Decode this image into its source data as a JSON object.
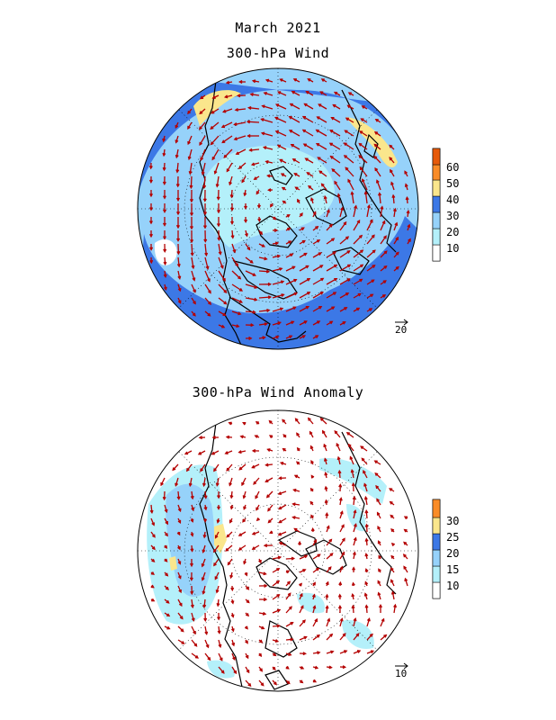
{
  "titles": {
    "main": "March 2021",
    "top_panel": "300-hPa Wind",
    "bottom_panel": "300-hPa Wind Anomaly"
  },
  "top_panel": {
    "ref_vector_label": "20",
    "colorbar": {
      "labels": [
        "10",
        "20",
        "30",
        "40",
        "50",
        "60"
      ],
      "colors": [
        "#ffffff",
        "#b4f0fa",
        "#96d2fa",
        "#3c78e6",
        "#fae68c",
        "#fa8c28",
        "#e65a0a"
      ]
    }
  },
  "bottom_panel": {
    "ref_vector_label": "10",
    "colorbar": {
      "labels": [
        "10",
        "15",
        "20",
        "25",
        "30"
      ],
      "colors": [
        "#ffffff",
        "#b4f0fa",
        "#96d2fa",
        "#3c78e6",
        "#fae68c",
        "#fa8c28",
        "#e65a0a"
      ]
    }
  },
  "colors": {
    "arrow": "#b40000",
    "coast": "#000000"
  }
}
